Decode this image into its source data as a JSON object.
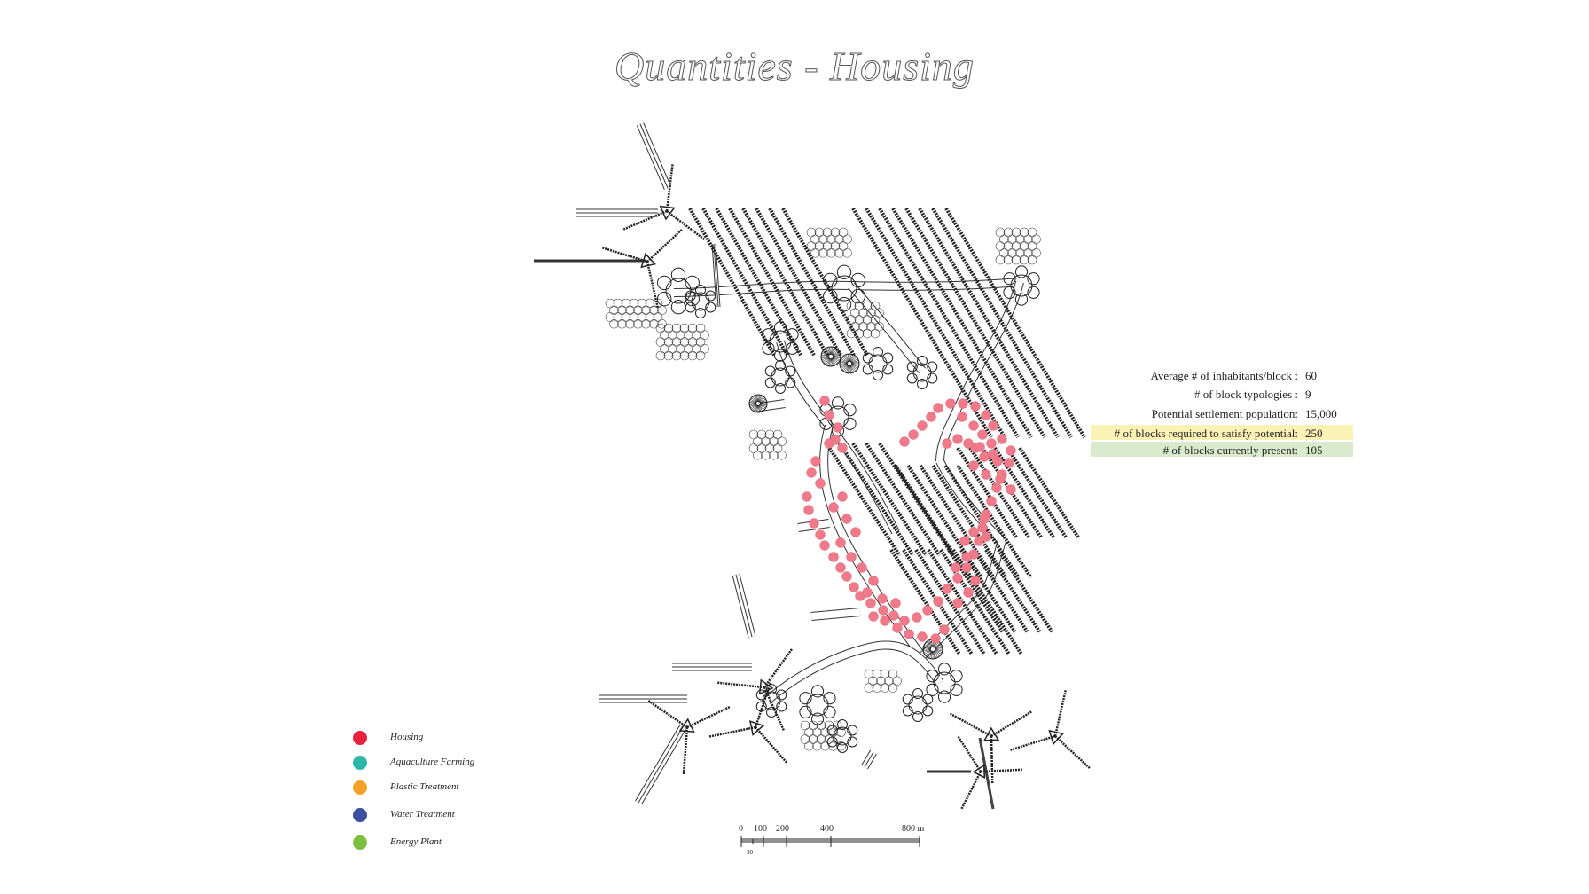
{
  "title": "Quantities - Housing",
  "stats": [
    {
      "label": "Average # of inhabitants/block :",
      "value": "60",
      "highlight": ""
    },
    {
      "label": "# of block typologies :",
      "value": "9",
      "highlight": ""
    },
    {
      "label": "Potential settlement population:",
      "value": "15,000",
      "highlight": ""
    },
    {
      "label": "# of blocks required to satisfy potential:",
      "value": "250",
      "highlight": "#fbf3b5"
    },
    {
      "label": "# of blocks currently present:",
      "value": "105",
      "highlight": "#d9ebcc"
    }
  ],
  "legend": [
    {
      "label": "Housing",
      "color": "#e8213e",
      "icon": "housing-dot-icon"
    },
    {
      "label": "Aquaculture Farming",
      "color": "#2bb7a8",
      "icon": "aquaculture-dot-icon"
    },
    {
      "label": "Plastic Treatment",
      "color": "#f5a02a",
      "icon": "plastic-dot-icon"
    },
    {
      "label": "Water Treatment",
      "color": "#3a4fa0",
      "icon": "water-dot-icon"
    },
    {
      "label": "Energy Plant",
      "color": "#7cbf3e",
      "icon": "energy-dot-icon"
    }
  ],
  "scale_bar": {
    "labels": [
      "0",
      "100",
      "200",
      "400",
      "800 m"
    ],
    "sub_label": "50"
  },
  "colors": {
    "housing_marker": "#f07a8a",
    "linework": "#333333"
  }
}
